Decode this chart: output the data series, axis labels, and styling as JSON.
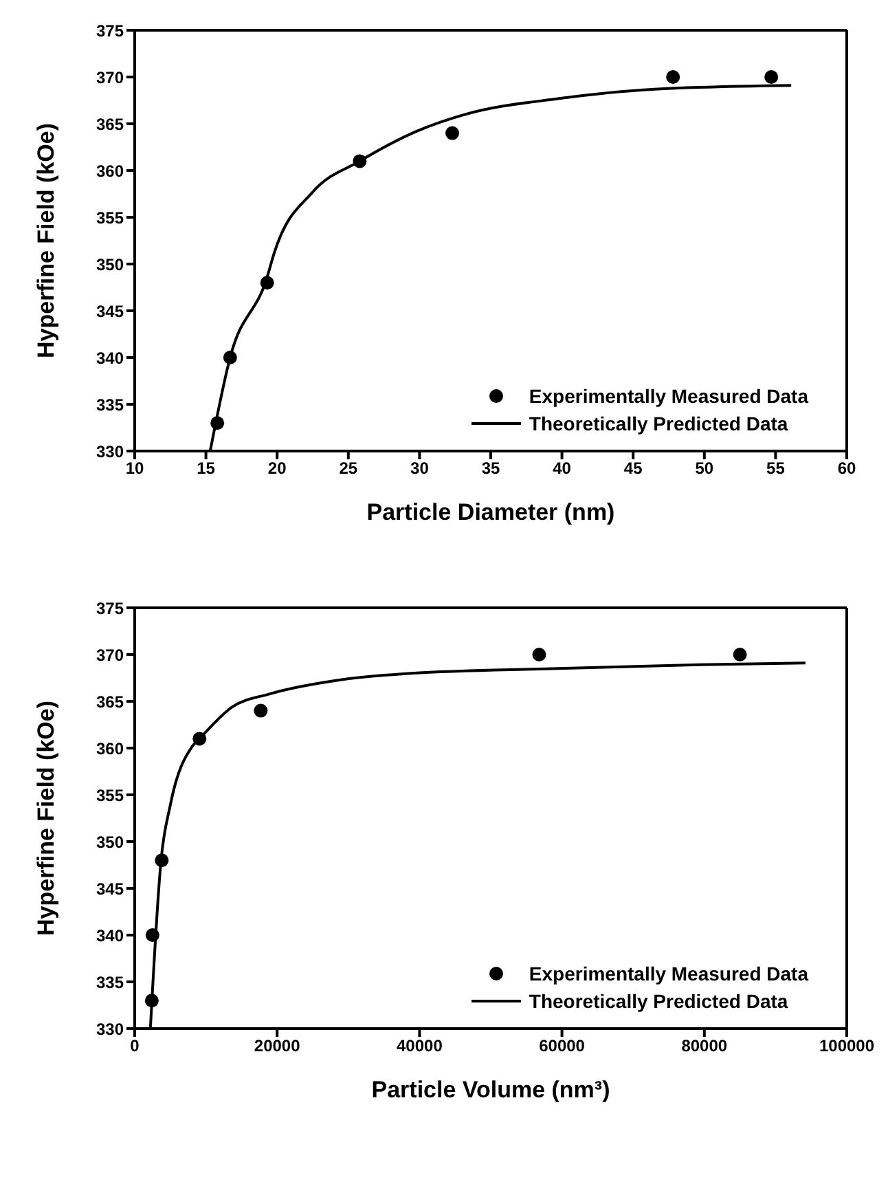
{
  "chart_data": [
    {
      "type": "scatter",
      "xlabel": "Particle Diameter (nm)",
      "ylabel": "Hyperfine Field (kOe)",
      "xlim": [
        10,
        60
      ],
      "xticks": [
        10,
        15,
        20,
        25,
        30,
        35,
        40,
        45,
        50,
        55,
        60
      ],
      "ylim": [
        330,
        375
      ],
      "yticks": [
        330,
        335,
        340,
        345,
        350,
        355,
        360,
        365,
        370,
        375
      ],
      "legend": "bottom right",
      "grid": false,
      "series": [
        {
          "name": "Experimentally Measured Data",
          "marker": "circle",
          "color": "#000000",
          "x": [
            15.8,
            16.7,
            19.3,
            25.8,
            32.3,
            47.8,
            54.7
          ],
          "values": [
            333,
            340,
            348,
            361,
            364,
            370,
            370
          ]
        },
        {
          "name": "Theoretically Predicted Data",
          "type": "line",
          "marker": "none",
          "color": "#000000",
          "x": [
            15.3,
            16.7,
            19.3,
            19.8,
            22.5,
            25.8,
            29.8,
            33.2,
            39.8,
            46.5,
            56.1
          ],
          "values": [
            330,
            340,
            348.6,
            351.2,
            357.7,
            361,
            364.2,
            366,
            367.7,
            368.7,
            369.1
          ]
        }
      ]
    },
    {
      "type": "scatter",
      "xlabel": "Particle Volume (nm³)",
      "ylabel": "Hyperfine Field (kOe)",
      "xlim": [
        0,
        100000
      ],
      "xticks": [
        0,
        20000,
        40000,
        60000,
        80000,
        100000
      ],
      "ylim": [
        330,
        375
      ],
      "yticks": [
        330,
        335,
        340,
        345,
        350,
        355,
        360,
        365,
        370,
        375
      ],
      "legend": "bottom right",
      "grid": false,
      "series": [
        {
          "name": "Experimentally Measured Data",
          "marker": "circle",
          "color": "#000000",
          "x": [
            2400,
            2500,
            3800,
            9100,
            17700,
            56800,
            85000
          ],
          "values": [
            333,
            340,
            348,
            361,
            364,
            370,
            370
          ]
        },
        {
          "name": "Theoretically Predicted Data",
          "type": "line",
          "marker": "none",
          "color": "#000000",
          "x": [
            2200,
            3700,
            5000,
            8100,
            9100,
            13700,
            19000,
            28900,
            38800,
            58600,
            78400,
            94200
          ],
          "values": [
            330,
            348,
            353.9,
            360.2,
            361,
            364.4,
            365.8,
            367.3,
            368,
            368.5,
            368.9,
            369.1
          ]
        }
      ]
    }
  ]
}
